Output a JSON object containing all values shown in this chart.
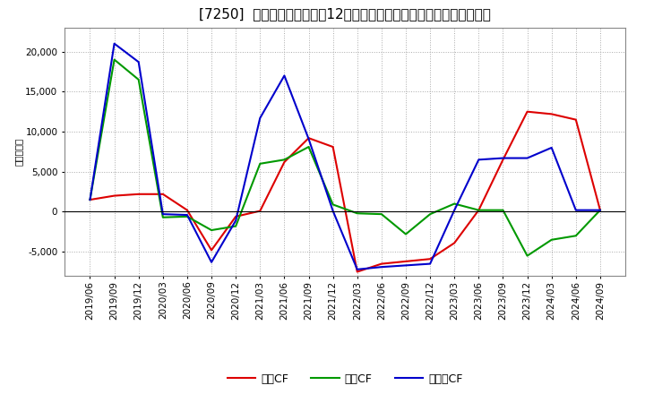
{
  "title": "[7250]  キャッシュフローの12か月移動合計の対前年同期増減額の推移",
  "ylabel": "（百万円）",
  "background_color": "#ffffff",
  "grid_color": "#aaaaaa",
  "x_labels": [
    "2019/06",
    "2019/09",
    "2019/12",
    "2020/03",
    "2020/06",
    "2020/09",
    "2020/12",
    "2021/03",
    "2021/06",
    "2021/09",
    "2021/12",
    "2022/03",
    "2022/06",
    "2022/09",
    "2022/12",
    "2023/03",
    "2023/06",
    "2023/09",
    "2023/12",
    "2024/03",
    "2024/06",
    "2024/09"
  ],
  "営業CF_color": "#dd0000",
  "投資CF_color": "#009900",
  "フリーCF_color": "#0000cc",
  "営業CF_vals": [
    1500,
    2000,
    2200,
    2200,
    200,
    -4800,
    -600,
    100,
    6200,
    9200,
    8100,
    -7500,
    -6500,
    -6200,
    -5900,
    -3900,
    200,
    6500,
    12500,
    12200,
    11500,
    200
  ],
  "投資CF_vals": [
    1500,
    19000,
    16500,
    -700,
    -600,
    -2300,
    -1800,
    6000,
    6500,
    8100,
    900,
    -200,
    -300,
    -2800,
    -300,
    1000,
    200,
    200,
    -5500,
    -3500,
    -3000,
    200
  ],
  "フリーCF_vals": [
    1500,
    21000,
    18700,
    -300,
    -400,
    -6300,
    -1100,
    11700,
    17000,
    9100,
    100,
    -7200,
    -6900,
    -6700,
    -6500,
    200,
    6500,
    6700,
    6700,
    8000,
    200,
    200
  ],
  "ylim": [
    -8000,
    23000
  ],
  "yticks": [
    -5000,
    0,
    5000,
    10000,
    15000,
    20000
  ],
  "title_fontsize": 11,
  "axis_fontsize": 7.5,
  "legend_fontsize": 9
}
